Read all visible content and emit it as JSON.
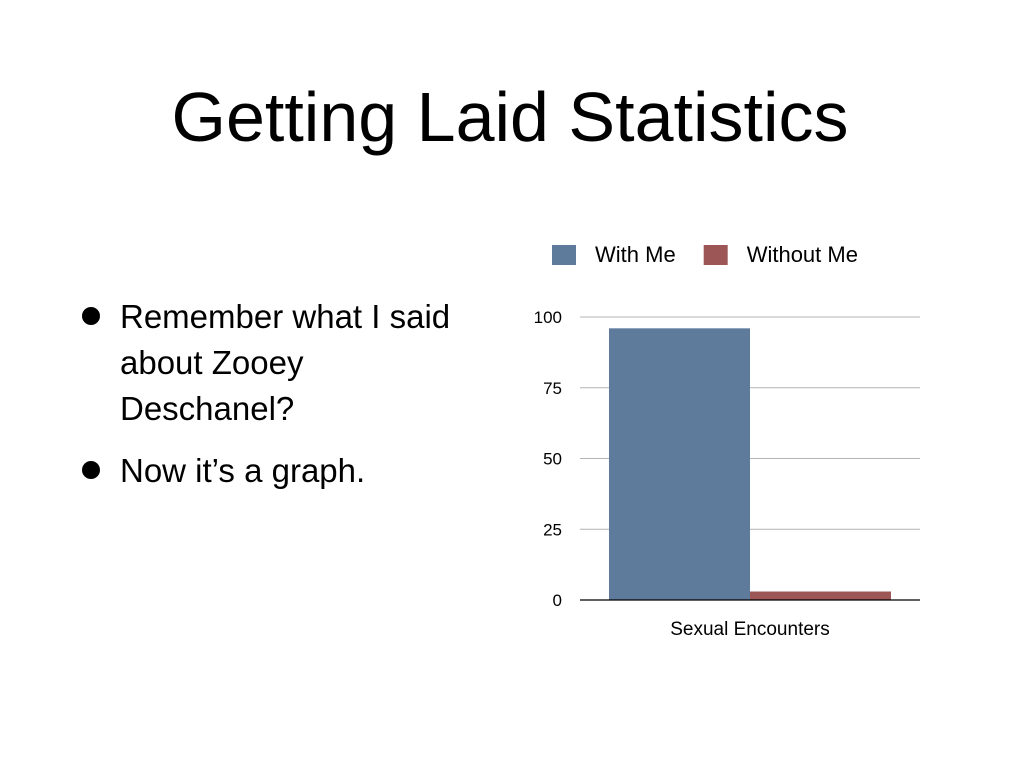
{
  "slide": {
    "title": "Getting Laid Statistics",
    "bullets": [
      "Remember what I said about Zooey Deschanel?",
      "Now it’s a graph."
    ]
  },
  "chart_data": {
    "type": "bar",
    "categories": [
      "Sexual Encounters"
    ],
    "series": [
      {
        "name": "With Me",
        "values": [
          96
        ],
        "color": "#5f7b9c"
      },
      {
        "name": "Without Me",
        "values": [
          3
        ],
        "color": "#9c5656"
      }
    ],
    "ylim": [
      0,
      100
    ],
    "yticks": [
      "0",
      "25",
      "50",
      "75",
      "100"
    ],
    "xlabel": "",
    "ylabel": "",
    "grid": true,
    "legend_position": "top"
  }
}
